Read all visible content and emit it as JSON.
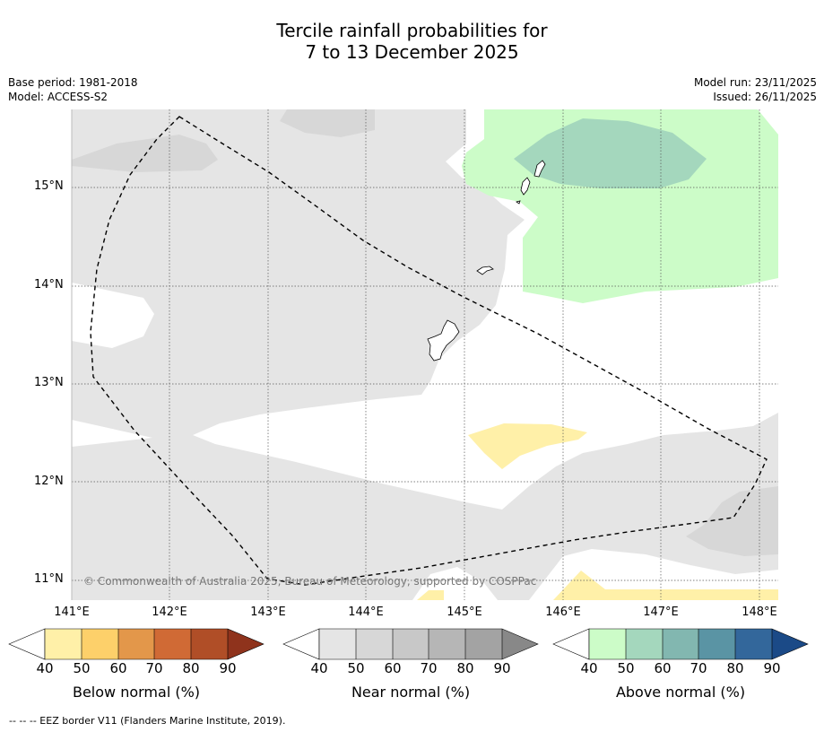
{
  "title": {
    "line1": "Tercile rainfall probabilities for",
    "line2": "7 to 13 December 2025"
  },
  "meta": {
    "base_period": "Base period: 1981-2018",
    "model": "Model: ACCESS-S2",
    "model_run": "Model run: 23/11/2025",
    "issued": "Issued: 26/11/2025"
  },
  "axes": {
    "lat_labels": [
      "15°N",
      "14°N",
      "13°N",
      "12°N",
      "11°N"
    ],
    "lon_labels": [
      "141°E",
      "142°E",
      "143°E",
      "144°E",
      "145°E",
      "146°E",
      "147°E",
      "148°E"
    ]
  },
  "copyright": "© Commonwealth of Australia 2025, Bureau of Meteorology, supported by COSPPac",
  "colorbars": {
    "ticks": [
      "40",
      "50",
      "60",
      "70",
      "80",
      "90"
    ],
    "below": {
      "label": "Below normal (%)",
      "colors": [
        "#fff0a8",
        "#fdd06a",
        "#e3974a",
        "#d06a35",
        "#b04e27",
        "#8f331c"
      ]
    },
    "near": {
      "label": "Near normal (%)",
      "colors": [
        "#e5e5e5",
        "#d7d7d7",
        "#c8c8c8",
        "#b6b6b6",
        "#a3a3a3",
        "#888888"
      ]
    },
    "above": {
      "label": "Above normal (%)",
      "colors": [
        "#ccfcc8",
        "#a4d7bd",
        "#82b7b0",
        "#5a94a4",
        "#33679b",
        "#1b4a87"
      ]
    }
  },
  "footnote": "--  --  -- EEZ border V11 (Flanders Marine Institute, 2019)."
}
